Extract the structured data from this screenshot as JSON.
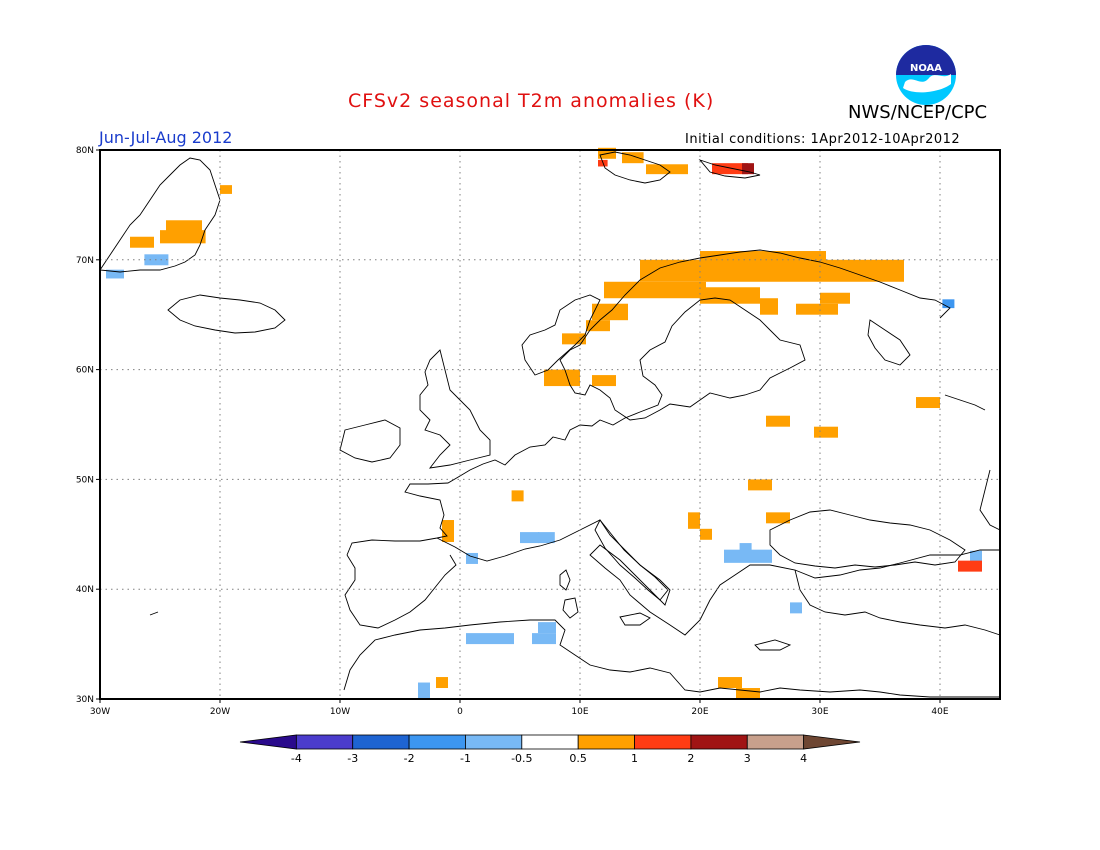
{
  "title": "CFSv2 seasonal T2m anomalies (K)",
  "agency": "NWS/NCEP/CPC",
  "logo_text": "NOAA",
  "season": "Jun-Jul-Aug 2012",
  "initial_conditions": "Initial conditions: 1Apr2012-10Apr2012",
  "map": {
    "lon_range": [
      -30,
      45
    ],
    "lat_range": [
      30,
      80
    ],
    "lon_ticks": [
      {
        "value": -30,
        "label": "30W"
      },
      {
        "value": -20,
        "label": "20W"
      },
      {
        "value": -10,
        "label": "10W"
      },
      {
        "value": 0,
        "label": "0"
      },
      {
        "value": 10,
        "label": "10E"
      },
      {
        "value": 20,
        "label": "20E"
      },
      {
        "value": 30,
        "label": "30E"
      },
      {
        "value": 40,
        "label": "40E"
      }
    ],
    "lat_ticks": [
      {
        "value": 30,
        "label": "30N"
      },
      {
        "value": 40,
        "label": "40N"
      },
      {
        "value": 50,
        "label": "50N"
      },
      {
        "value": 60,
        "label": "60N"
      },
      {
        "value": 70,
        "label": "70N"
      },
      {
        "value": 80,
        "label": "80N"
      }
    ],
    "grid": "dotted"
  },
  "colorbar": {
    "colors": [
      "#2a0a8c",
      "#4b3ccc",
      "#1e64d2",
      "#3c96f0",
      "#78b9f5",
      "#ffffff",
      "#ffa000",
      "#ff3c14",
      "#a01414",
      "#c8a08c",
      "#6e4632"
    ],
    "labels": [
      "-4",
      "-3",
      "-2",
      "-1",
      "-0.5",
      "0.5",
      "1",
      "2",
      "3",
      "4"
    ]
  },
  "anomaly_cells": [
    {
      "lon": -29.5,
      "lat": 68.3,
      "w": 1.5,
      "h": 0.8,
      "value": -0.7
    },
    {
      "lon": -26.3,
      "lat": 69.5,
      "w": 2.0,
      "h": 1.0,
      "value": -0.7
    },
    {
      "lon": -27.5,
      "lat": 71.1,
      "w": 2.0,
      "h": 1.0,
      "value": 0.7
    },
    {
      "lon": -25.0,
      "lat": 71.5,
      "w": 3.8,
      "h": 1.2,
      "value": 0.7
    },
    {
      "lon": -24.5,
      "lat": 72.6,
      "w": 3.0,
      "h": 1.0,
      "value": 0.7
    },
    {
      "lon": -20.0,
      "lat": 76.0,
      "w": 1.0,
      "h": 0.8,
      "value": 0.7
    },
    {
      "lon": 11.5,
      "lat": 79.2,
      "w": 1.5,
      "h": 1.0,
      "value": 0.7
    },
    {
      "lon": 13.5,
      "lat": 78.8,
      "w": 1.8,
      "h": 1.0,
      "value": 0.7
    },
    {
      "lon": 11.5,
      "lat": 78.5,
      "w": 0.8,
      "h": 0.6,
      "value": 1.5
    },
    {
      "lon": 15.5,
      "lat": 77.8,
      "w": 3.5,
      "h": 0.9,
      "value": 0.7
    },
    {
      "lon": 21.0,
      "lat": 77.8,
      "w": 3.0,
      "h": 1.0,
      "value": 1.5
    },
    {
      "lon": 23.5,
      "lat": 77.8,
      "w": 1.0,
      "h": 1.0,
      "value": 2.5
    },
    {
      "lon": 20.0,
      "lat": 69.5,
      "w": 10.5,
      "h": 1.3,
      "value": 0.7
    },
    {
      "lon": 15.0,
      "lat": 68.0,
      "w": 22.0,
      "h": 2.0,
      "value": 0.7
    },
    {
      "lon": 12.0,
      "lat": 66.5,
      "w": 8.5,
      "h": 1.5,
      "value": 0.7
    },
    {
      "lon": 20.0,
      "lat": 66.0,
      "w": 5.0,
      "h": 1.5,
      "value": 0.7
    },
    {
      "lon": 25.0,
      "lat": 65.0,
      "w": 1.5,
      "h": 1.5,
      "value": 0.7
    },
    {
      "lon": 28.0,
      "lat": 65.0,
      "w": 3.5,
      "h": 1.0,
      "value": 0.7
    },
    {
      "lon": 30.0,
      "lat": 66.0,
      "w": 2.5,
      "h": 1.0,
      "value": 0.7
    },
    {
      "lon": 11.0,
      "lat": 64.5,
      "w": 3.0,
      "h": 1.5,
      "value": 0.7
    },
    {
      "lon": 10.5,
      "lat": 63.5,
      "w": 2.0,
      "h": 1.0,
      "value": 0.7
    },
    {
      "lon": 40.2,
      "lat": 65.6,
      "w": 1.0,
      "h": 0.8,
      "value": -1.5
    },
    {
      "lon": 8.5,
      "lat": 62.3,
      "w": 2.0,
      "h": 1.0,
      "value": 0.7
    },
    {
      "lon": 7.0,
      "lat": 58.5,
      "w": 3.0,
      "h": 1.5,
      "value": 0.7
    },
    {
      "lon": 11.0,
      "lat": 58.5,
      "w": 2.0,
      "h": 1.0,
      "value": 0.7
    },
    {
      "lon": 38.0,
      "lat": 56.5,
      "w": 2.0,
      "h": 1.0,
      "value": 0.7
    },
    {
      "lon": 25.5,
      "lat": 54.8,
      "w": 2.0,
      "h": 1.0,
      "value": 0.7
    },
    {
      "lon": 29.5,
      "lat": 53.8,
      "w": 2.0,
      "h": 1.0,
      "value": 0.7
    },
    {
      "lon": 24.0,
      "lat": 49.0,
      "w": 2.0,
      "h": 1.0,
      "value": 0.7
    },
    {
      "lon": 4.3,
      "lat": 48.0,
      "w": 1.0,
      "h": 1.0,
      "value": 0.7
    },
    {
      "lon": 25.5,
      "lat": 46.0,
      "w": 2.0,
      "h": 1.0,
      "value": 0.7
    },
    {
      "lon": 19.0,
      "lat": 45.5,
      "w": 1.0,
      "h": 1.5,
      "value": 0.7
    },
    {
      "lon": 20.0,
      "lat": 44.5,
      "w": 1.0,
      "h": 1.0,
      "value": 0.7
    },
    {
      "lon": -1.5,
      "lat": 44.3,
      "w": 1.0,
      "h": 2.0,
      "value": 0.7
    },
    {
      "lon": 5.0,
      "lat": 44.2,
      "w": 1.6,
      "h": 1.0,
      "value": -0.7
    },
    {
      "lon": 6.5,
      "lat": 44.2,
      "w": 1.4,
      "h": 1.0,
      "value": -0.7
    },
    {
      "lon": 0.5,
      "lat": 42.3,
      "w": 1.0,
      "h": 1.0,
      "value": -0.7
    },
    {
      "lon": 22.0,
      "lat": 42.4,
      "w": 4.0,
      "h": 1.2,
      "value": -0.7
    },
    {
      "lon": 23.3,
      "lat": 43.4,
      "w": 1.0,
      "h": 0.8,
      "value": -0.7
    },
    {
      "lon": 42.5,
      "lat": 42.5,
      "w": 1.0,
      "h": 1.0,
      "value": -0.7
    },
    {
      "lon": 41.5,
      "lat": 41.6,
      "w": 2.0,
      "h": 1.0,
      "value": 1.5
    },
    {
      "lon": 27.5,
      "lat": 37.8,
      "w": 1.0,
      "h": 1.0,
      "value": -0.7
    },
    {
      "lon": 0.5,
      "lat": 35.0,
      "w": 4.0,
      "h": 1.0,
      "value": -0.7
    },
    {
      "lon": 6.0,
      "lat": 35.0,
      "w": 2.0,
      "h": 1.0,
      "value": -0.7
    },
    {
      "lon": 6.5,
      "lat": 36.0,
      "w": 1.5,
      "h": 1.0,
      "value": -0.7
    },
    {
      "lon": 21.5,
      "lat": 31.0,
      "w": 2.0,
      "h": 1.0,
      "value": 0.7
    },
    {
      "lon": 23.0,
      "lat": 30.0,
      "w": 2.0,
      "h": 1.0,
      "value": 0.7
    },
    {
      "lon": -3.5,
      "lat": 30.0,
      "w": 1.0,
      "h": 1.5,
      "value": -0.7
    },
    {
      "lon": -2.0,
      "lat": 31.0,
      "w": 1.0,
      "h": 1.0,
      "value": 0.7
    }
  ]
}
